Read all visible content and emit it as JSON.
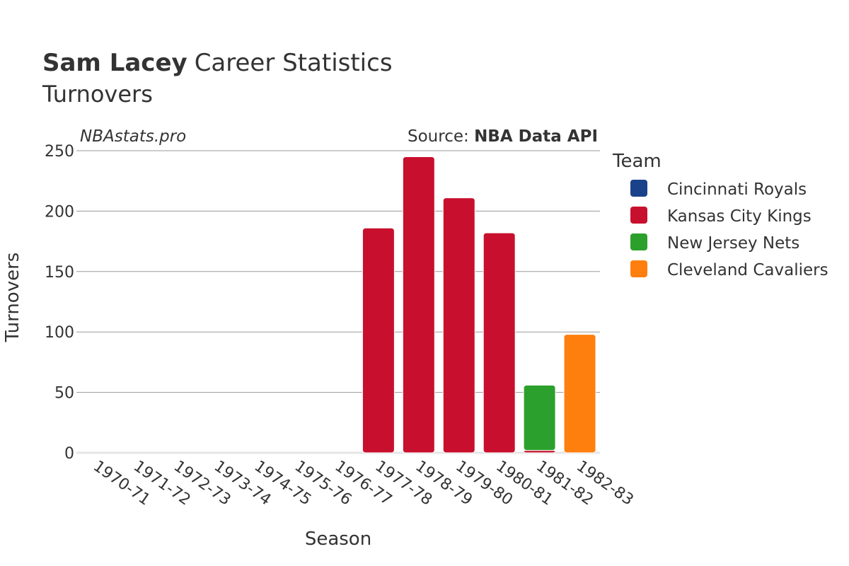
{
  "chart_data": {
    "type": "bar",
    "title_bold": "Sam Lacey",
    "title_rest": "Career Statistics",
    "subtitle": "Turnovers",
    "watermark": "NBAstats.pro",
    "source_prefix": "Source: ",
    "source_name": "NBA Data API",
    "xlabel": "Season",
    "ylabel": "Turnovers",
    "ylim": [
      0,
      250
    ],
    "yticks": [
      0,
      50,
      100,
      150,
      200,
      250
    ],
    "grid": true,
    "legend_title": "Team",
    "legend_position": "right",
    "categories": [
      "1970-71",
      "1971-72",
      "1972-73",
      "1973-74",
      "1974-75",
      "1975-76",
      "1976-77",
      "1977-78",
      "1978-79",
      "1979-80",
      "1980-81",
      "1981-82",
      "1982-83"
    ],
    "series": [
      {
        "name": "Cincinnati Royals",
        "color": "#1a428a",
        "values": [
          0,
          0,
          0,
          0,
          0,
          0,
          0,
          0,
          0,
          0,
          0,
          0,
          0
        ]
      },
      {
        "name": "Kansas City Kings",
        "color": "#c8102e",
        "values": [
          0,
          0,
          0,
          0,
          0,
          0,
          0,
          186,
          245,
          211,
          182,
          2,
          0
        ]
      },
      {
        "name": "New Jersey Nets",
        "color": "#2ca02c",
        "values": [
          0,
          0,
          0,
          0,
          0,
          0,
          0,
          0,
          0,
          0,
          0,
          54,
          0
        ]
      },
      {
        "name": "Cleveland Cavaliers",
        "color": "#ff7f0e",
        "values": [
          0,
          0,
          0,
          0,
          0,
          0,
          0,
          0,
          0,
          0,
          0,
          0,
          98
        ]
      }
    ]
  }
}
